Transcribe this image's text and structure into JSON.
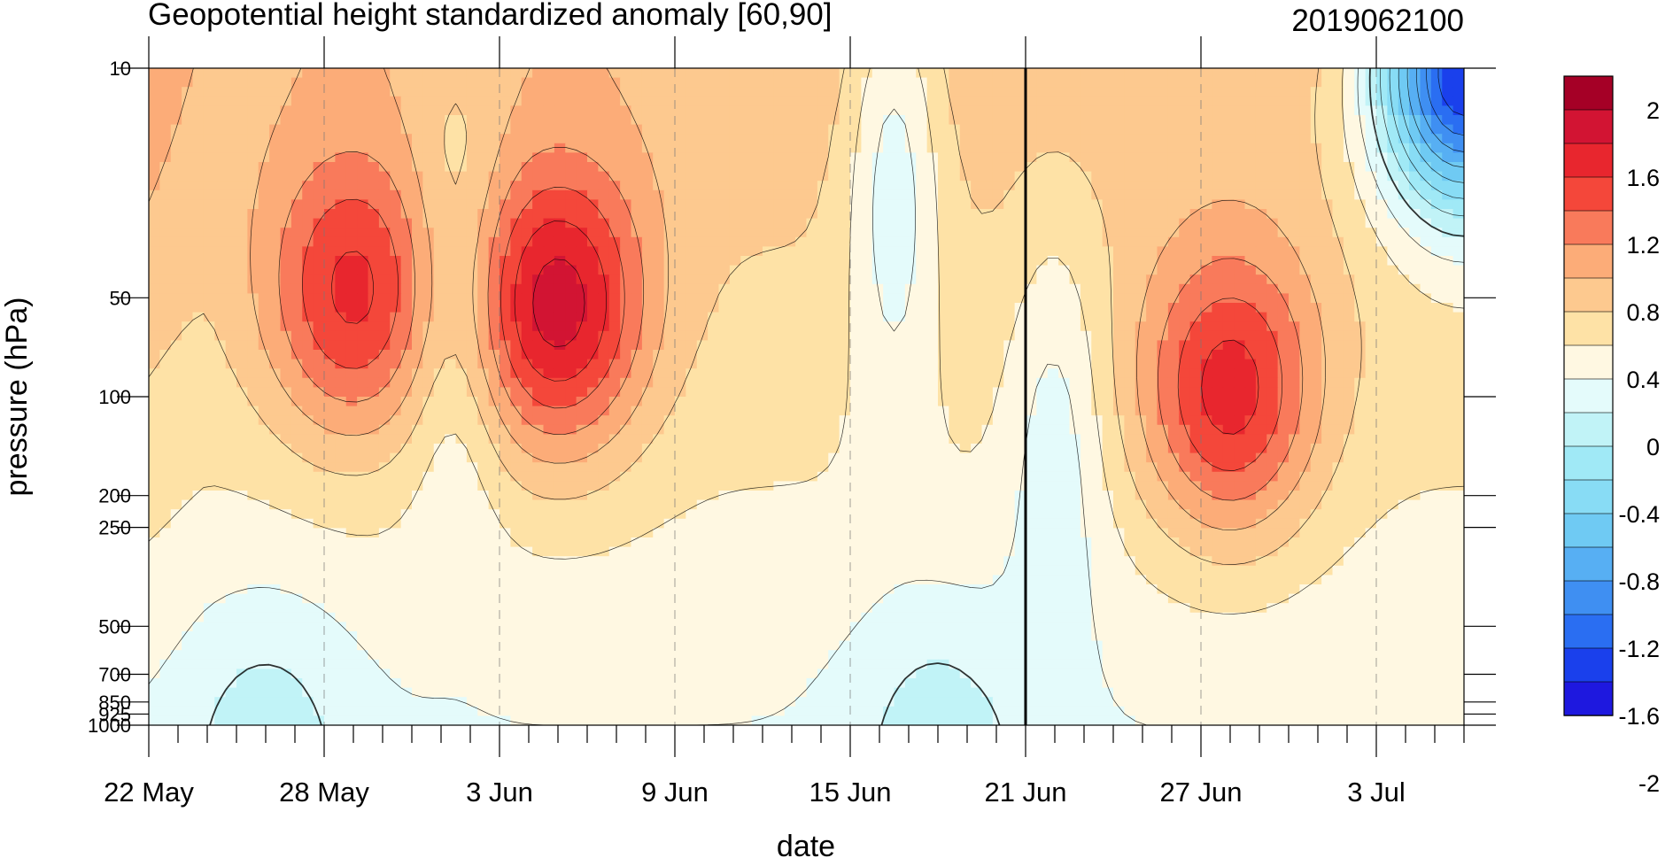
{
  "chart_data": {
    "type": "heatmap",
    "title": "Geopotential height standardized anomaly [60,90]",
    "timestamp": "2019062100",
    "xlabel": "date",
    "ylabel": "pressure (hPa)",
    "x_tick_labels": [
      "22 May",
      "28 May",
      "3 Jun",
      "9 Jun",
      "15 Jun",
      "21 Jun",
      "27 Jun",
      "3 Jul"
    ],
    "x_tick_days": [
      0,
      6,
      12,
      18,
      24,
      30,
      36,
      42
    ],
    "x_range_days": [
      0,
      45
    ],
    "current_date_marker": "21 Jun",
    "current_date_day": 30,
    "y_tick_labels": [
      "10",
      "50",
      "100",
      "200",
      "250",
      "500",
      "700",
      "850",
      "925",
      "1000"
    ],
    "y_tick_values": [
      10,
      50,
      100,
      200,
      250,
      500,
      700,
      850,
      925,
      1000
    ],
    "y_scale": "log",
    "y_range_hPa": [
      10,
      1000
    ],
    "colorbar_labels": [
      "2",
      "1.6",
      "1.2",
      "0.8",
      "0.4",
      "0",
      "-0.4",
      "-0.8",
      "-1.2",
      "-1.6",
      "-2"
    ],
    "contour_levels": [
      2.2,
      2.0,
      1.8,
      1.6,
      1.4,
      1.2,
      1.0,
      0.8,
      0.6,
      0.4,
      0.2,
      0.0,
      -0.2,
      -0.4,
      -0.6,
      -0.8,
      -1.0,
      -1.2,
      -1.4,
      -1.6,
      -1.8,
      -2.0,
      -2.2
    ],
    "colors": [
      "#a50026",
      "#d21433",
      "#e8262e",
      "#f4473a",
      "#f97a5b",
      "#fcac78",
      "#fdc98f",
      "#fee2a6",
      "#fff8e2",
      "#e4fbfb",
      "#c1f3f7",
      "#a0e9f6",
      "#88dcf5",
      "#6fcaf3",
      "#57aff3",
      "#3f8ff2",
      "#2a6ef2",
      "#1a40ec",
      "#1e18df"
    ],
    "anomaly_features": [
      {
        "name": "warm-core-mid-june",
        "day": 14,
        "pressure_hPa": 55,
        "value": 1.7
      },
      {
        "name": "warm-core-late-june",
        "day": 37,
        "pressure_hPa": 100,
        "value": 1.5
      },
      {
        "name": "warm-core-late-may",
        "day": 7,
        "pressure_hPa": 50,
        "value": 1.45
      },
      {
        "name": "cold-core-early-july",
        "day": 45,
        "pressure_hPa": 10,
        "value": -1.6
      },
      {
        "name": "weak-negative-surface-late-may",
        "day": 4,
        "pressure_hPa": 1000,
        "value": -0.1
      },
      {
        "name": "weak-negative-surface-mid-june",
        "day": 27,
        "pressure_hPa": 1000,
        "value": -0.1
      }
    ]
  }
}
